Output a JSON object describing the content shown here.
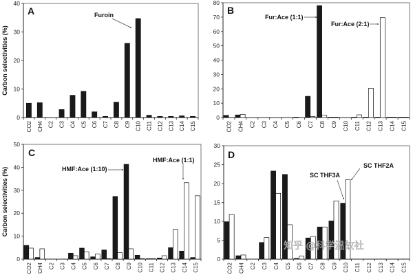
{
  "chart_data": [
    {
      "panel": "A",
      "type": "bar",
      "ylabel": "Carbon selectivities (%)",
      "ylim": [
        0,
        40
      ],
      "yticks": [
        0,
        10,
        20,
        30,
        40
      ],
      "categories": [
        "CO2",
        "CH4",
        "C2",
        "C3",
        "C4",
        "C5",
        "C6",
        "C7",
        "C8",
        "C9",
        "C10",
        "C11",
        "C12",
        "C13",
        "C14",
        "C15"
      ],
      "series": [
        {
          "name": "Furoin",
          "fill": "#1a1a1a",
          "values": [
            5,
            5.2,
            0,
            2.8,
            7.8,
            9.2,
            2,
            0.4,
            5.4,
            26,
            34.7,
            0.8,
            0.4,
            0.4,
            0.6,
            0.4
          ]
        }
      ],
      "annotations": [
        {
          "text": "Furoin",
          "target_category": "C10",
          "target_series": 0
        }
      ]
    },
    {
      "panel": "B",
      "type": "bar",
      "ylabel": "",
      "ylim": [
        0,
        80
      ],
      "yticks": [
        0,
        10,
        20,
        30,
        40,
        50,
        60,
        70,
        80
      ],
      "categories": [
        "CO2",
        "CH4",
        "C2",
        "C3",
        "C4",
        "C5",
        "C6",
        "C7",
        "C8",
        "C9",
        "C10",
        "C11",
        "C12",
        "C13",
        "C14",
        "C15"
      ],
      "series": [
        {
          "name": "Fur:Ace (1:1)",
          "fill": "#1a1a1a",
          "values": [
            1.5,
            1.8,
            0,
            0,
            0,
            0,
            0.3,
            14.8,
            78,
            0.3,
            0,
            0.3,
            0.3,
            0.3,
            0.3,
            0.3
          ]
        },
        {
          "name": "Fur:Ace (2:1)",
          "fill": "#ffffff",
          "values": [
            0,
            2.2,
            0,
            0,
            0,
            0,
            0,
            0.8,
            1.6,
            0.3,
            0,
            1.9,
            20.4,
            69.6,
            0.3,
            0.3
          ]
        }
      ],
      "annotations": [
        {
          "text": "Fur:Ace (1:1)",
          "target_category": "C8",
          "target_series": 0
        },
        {
          "text": "Fur:Ace (2:1)",
          "target_category": "C13",
          "target_series": 1
        }
      ]
    },
    {
      "panel": "C",
      "type": "bar",
      "ylabel": "Carbon selectivities (%)",
      "ylim": [
        0,
        50
      ],
      "yticks": [
        0,
        10,
        20,
        30,
        40,
        50
      ],
      "categories": [
        "CO2",
        "CH4",
        "C2",
        "C3",
        "C4",
        "C5",
        "C6",
        "C7",
        "C8",
        "C9",
        "C10",
        "C11",
        "C12",
        "C13",
        "C14",
        "C15"
      ],
      "series": [
        {
          "name": "HMF:Ace (1:10)",
          "fill": "#1a1a1a",
          "values": [
            6,
            0.7,
            0,
            0,
            2.6,
            4.8,
            1,
            4,
            27.3,
            41.3,
            1.7,
            0.2,
            0.5,
            5,
            3.5,
            0.7
          ]
        },
        {
          "name": "HMF:Ace (1:1)",
          "fill": "#ffffff",
          "values": [
            4.8,
            4.5,
            0,
            0,
            1.5,
            3.2,
            2.2,
            0.2,
            2.8,
            4.5,
            0.3,
            0.2,
            1.5,
            13,
            33.3,
            27.6
          ]
        }
      ],
      "annotations": [
        {
          "text": "HMF:Ace (1:10)",
          "target_category": "C9",
          "target_series": 0
        },
        {
          "text": "HMF:Ace (1:1)",
          "target_category": "C14",
          "target_series": 1
        }
      ]
    },
    {
      "panel": "D",
      "type": "bar",
      "ylabel": "",
      "ylim": [
        0,
        30
      ],
      "yticks": [
        0,
        5,
        10,
        15,
        20,
        25,
        30
      ],
      "categories": [
        "CO2",
        "CH4",
        "C2",
        "C3",
        "C4",
        "C5",
        "C6",
        "C7",
        "C8",
        "C9",
        "C10",
        "C11",
        "C12",
        "C13",
        "C14",
        "C15"
      ],
      "series": [
        {
          "name": "SC THF3A",
          "fill": "#1a1a1a",
          "values": [
            9.9,
            0.9,
            0,
            4.4,
            23.3,
            22.4,
            0.2,
            5.6,
            8.5,
            10.1,
            14.8,
            0,
            0,
            0,
            0,
            0
          ]
        },
        {
          "name": "SC THF2A",
          "fill": "#ffffff",
          "values": [
            11.8,
            1.1,
            0,
            5.7,
            17.4,
            9.1,
            0.8,
            6,
            8.5,
            15.4,
            21,
            0,
            0,
            0,
            0,
            0
          ]
        }
      ],
      "annotations": [
        {
          "text": "SC THF3A",
          "target_category": "C10",
          "target_series": 0
        },
        {
          "text": "SC THF2A",
          "target_category": "C10",
          "target_series": 1
        }
      ]
    }
  ],
  "watermark": "知乎 @科学温故社"
}
